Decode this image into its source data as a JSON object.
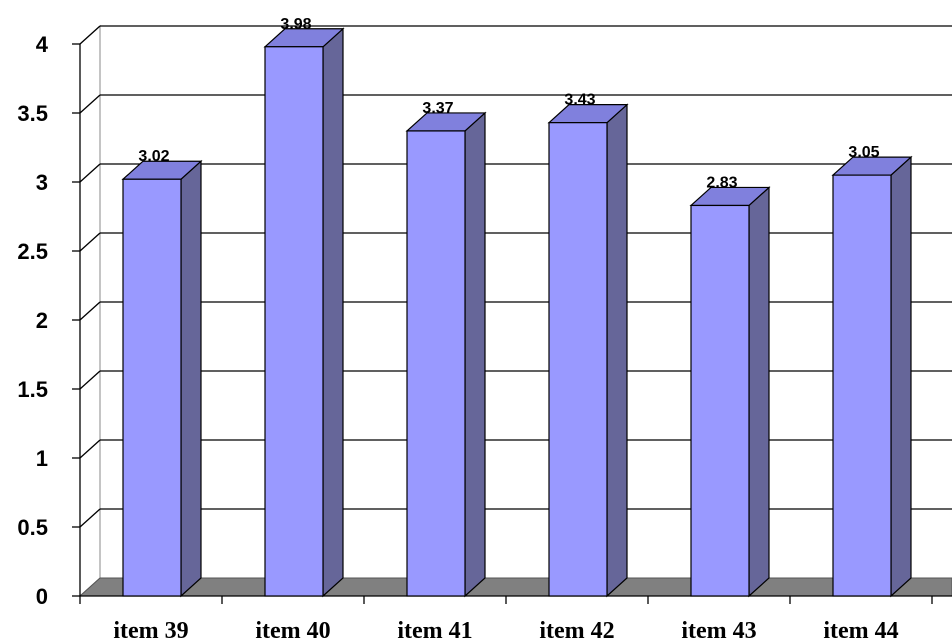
{
  "chart_data": {
    "type": "bar",
    "title": "",
    "xlabel": "",
    "ylabel": "",
    "categories": [
      "item 39",
      "item 40",
      "item 41",
      "item 42",
      "item 43",
      "item 44"
    ],
    "values": [
      3.02,
      3.98,
      3.37,
      3.43,
      2.83,
      3.05
    ],
    "value_labels": [
      "3.02",
      "3.98",
      "3.37",
      "3.43",
      "2.83",
      "3.05"
    ],
    "ylim": [
      0,
      4
    ],
    "yticks": [
      0,
      0.5,
      1,
      1.5,
      2,
      2.5,
      3,
      3.5,
      4
    ],
    "ytick_labels": [
      "0",
      "0.5",
      "1",
      "1.5",
      "2",
      "2.5",
      "3",
      "3.5",
      "4"
    ],
    "grid": true,
    "legend": "none",
    "three_d": true,
    "colors": {
      "bar_front": "#9999ff",
      "bar_side": "#666699",
      "bar_top": "#8080dd",
      "floor": "#808080",
      "gridline": "#000000",
      "background": "#ffffff"
    }
  }
}
